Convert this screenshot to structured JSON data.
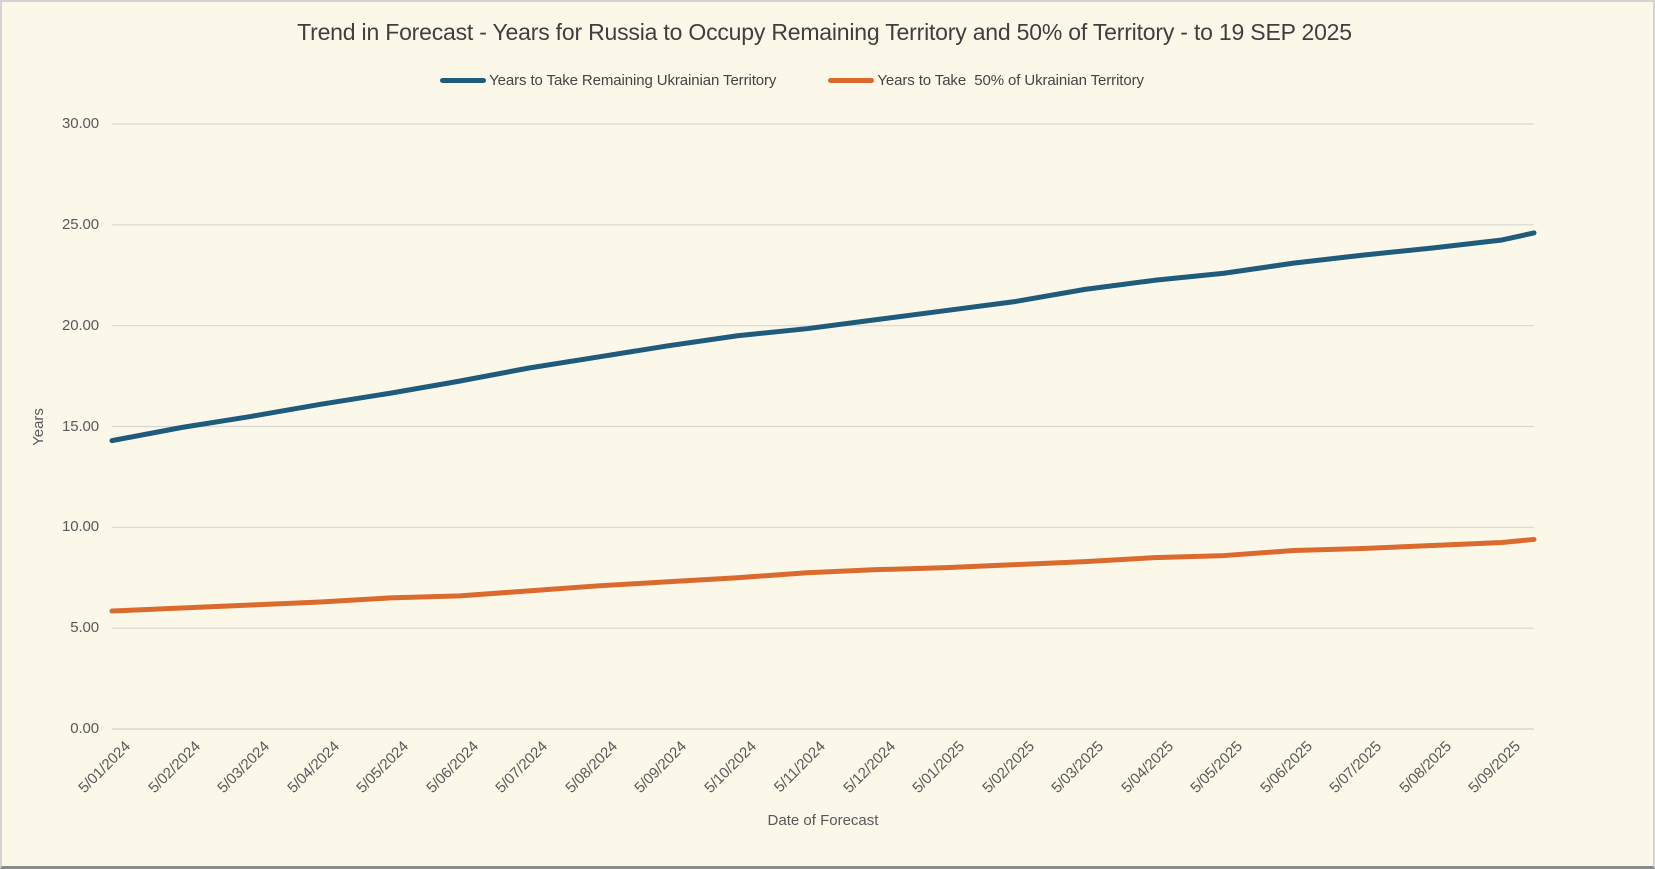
{
  "page": {
    "background": "#FBF7E9",
    "frame_border_color": "#D5D2D3"
  },
  "header": {
    "title": "Trend in Forecast - Years for Russia to Occupy Remaining Territory and 50% of Territory - to 19 SEP 2025"
  },
  "chart_data": {
    "type": "line",
    "title": "Trend in Forecast - Years for Russia to Occupy Remaining Territory and 50% of Territory - to 19 SEP 2025",
    "xlabel": "Date of Forecast",
    "ylabel": "Years",
    "ylim": [
      0,
      30
    ],
    "grid": true,
    "legend_position": "top",
    "gridline_color": "#D8D8D4",
    "axis_text_color": "#595959",
    "title_color": "#3F3F3F",
    "y_tick_labels": [
      "30.00",
      "25.00",
      "20.00",
      "15.00",
      "10.00",
      "5.00",
      "0.00"
    ],
    "x_tick_labels": [
      "5/01/2024",
      "5/02/2024",
      "5/03/2024",
      "5/04/2024",
      "5/05/2024",
      "5/06/2024",
      "5/07/2024",
      "5/08/2024",
      "5/09/2024",
      "5/10/2024",
      "5/11/2024",
      "5/12/2024",
      "5/01/2025",
      "5/02/2025",
      "5/03/2025",
      "5/04/2025",
      "5/05/2025",
      "5/06/2025",
      "5/07/2025",
      "5/08/2025",
      "5/09/2025"
    ],
    "categories": [
      "5/01/2024",
      "5/02/2024",
      "5/03/2024",
      "5/04/2024",
      "5/05/2024",
      "5/06/2024",
      "5/07/2024",
      "5/08/2024",
      "5/09/2024",
      "5/10/2024",
      "5/11/2024",
      "5/12/2024",
      "5/01/2025",
      "5/02/2025",
      "5/03/2025",
      "5/04/2025",
      "5/05/2025",
      "5/06/2025",
      "5/07/2025",
      "5/08/2025",
      "5/09/2025",
      "9/19/2025"
    ],
    "series": [
      {
        "name": "Years to Take Remaining Ukrainian Territory",
        "color": "#1F5B7B",
        "values": [
          14.3,
          14.95,
          15.5,
          16.1,
          16.65,
          17.25,
          17.9,
          18.45,
          19.0,
          19.5,
          19.85,
          20.3,
          20.75,
          21.2,
          21.8,
          22.25,
          22.6,
          23.1,
          23.5,
          23.85,
          24.25,
          24.6
        ]
      },
      {
        "name": "Years to Take  50% of Ukrainian Territory",
        "color": "#DB6A2E",
        "values": [
          5.85,
          6.0,
          6.15,
          6.3,
          6.5,
          6.6,
          6.85,
          7.1,
          7.3,
          7.5,
          7.75,
          7.9,
          8.0,
          8.15,
          8.3,
          8.5,
          8.6,
          8.85,
          8.95,
          9.1,
          9.25,
          9.4
        ]
      }
    ]
  }
}
